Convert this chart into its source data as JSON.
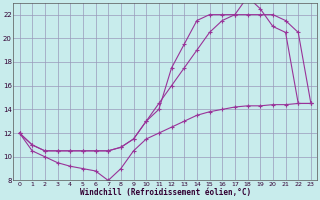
{
  "title": "",
  "xlabel": "Windchill (Refroidissement éolien,°C)",
  "ylabel": "",
  "background_color": "#c8ecec",
  "grid_color": "#9999bb",
  "line_color": "#993399",
  "xlim": [
    -0.5,
    23.5
  ],
  "ylim": [
    8,
    23
  ],
  "yticks": [
    8,
    10,
    12,
    14,
    16,
    18,
    20,
    22
  ],
  "xticks": [
    0,
    1,
    2,
    3,
    4,
    5,
    6,
    7,
    8,
    9,
    10,
    11,
    12,
    13,
    14,
    15,
    16,
    17,
    18,
    19,
    20,
    21,
    22,
    23
  ],
  "series1_x": [
    0,
    1,
    2,
    3,
    4,
    5,
    6,
    7,
    8,
    9,
    10,
    11,
    12,
    13,
    14,
    15,
    16,
    17,
    18,
    19,
    20,
    21,
    22,
    23
  ],
  "series1_y": [
    12.0,
    10.5,
    10.0,
    9.5,
    9.2,
    9.0,
    8.8,
    8.0,
    9.0,
    10.5,
    11.5,
    12.0,
    12.5,
    13.0,
    13.5,
    13.8,
    14.0,
    14.2,
    14.3,
    14.3,
    14.4,
    14.4,
    14.5,
    14.5
  ],
  "series2_x": [
    0,
    1,
    2,
    3,
    4,
    5,
    6,
    7,
    8,
    9,
    10,
    11,
    12,
    13,
    14,
    15,
    16,
    17,
    18,
    19,
    20,
    21,
    22,
    23
  ],
  "series2_y": [
    12.0,
    11.0,
    10.5,
    10.5,
    10.5,
    10.5,
    10.5,
    10.5,
    10.8,
    11.5,
    13.0,
    14.5,
    16.0,
    17.5,
    19.0,
    20.5,
    21.5,
    22.0,
    22.0,
    22.0,
    22.0,
    21.5,
    20.5,
    14.5
  ],
  "series3_x": [
    0,
    1,
    2,
    3,
    4,
    5,
    6,
    7,
    8,
    9,
    10,
    11,
    12,
    13,
    14,
    15,
    16,
    17,
    18,
    19,
    20,
    21,
    22,
    23
  ],
  "series3_y": [
    12.0,
    11.0,
    10.5,
    10.5,
    10.5,
    10.5,
    10.5,
    10.5,
    10.8,
    11.5,
    13.0,
    14.0,
    17.5,
    19.5,
    21.5,
    22.0,
    22.0,
    22.0,
    23.5,
    22.5,
    21.0,
    20.5,
    14.5,
    14.5
  ]
}
